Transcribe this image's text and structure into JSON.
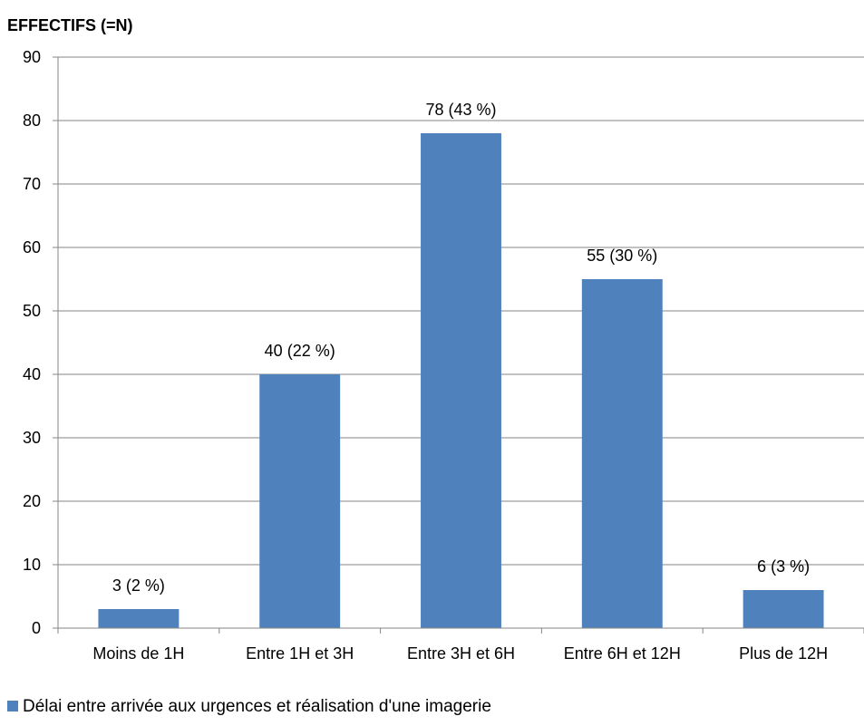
{
  "chart_data": {
    "type": "bar",
    "ylabel": "EFFECTIFS (=N)",
    "xlabel": "",
    "ylim": [
      0,
      90
    ],
    "yticks": [
      0,
      10,
      20,
      30,
      40,
      50,
      60,
      70,
      80,
      90
    ],
    "categories": [
      "Moins de 1H",
      "Entre 1H et 3H",
      "Entre 3H et 6H",
      "Entre 6H et 12H",
      "Plus de 12H"
    ],
    "series": [
      {
        "name": "Délai entre arrivée aux urgences et réalisation d'une imagerie",
        "values": [
          3,
          40,
          78,
          55,
          6
        ],
        "data_labels": [
          "3 (2 %)",
          "40 (22 %)",
          "78 (43 %)",
          "55 (30 %)",
          "6 (3 %)"
        ],
        "color": "#4f81bd"
      }
    ],
    "grid": true,
    "gridline_color": "#868686",
    "legend_position": "bottom-left"
  }
}
